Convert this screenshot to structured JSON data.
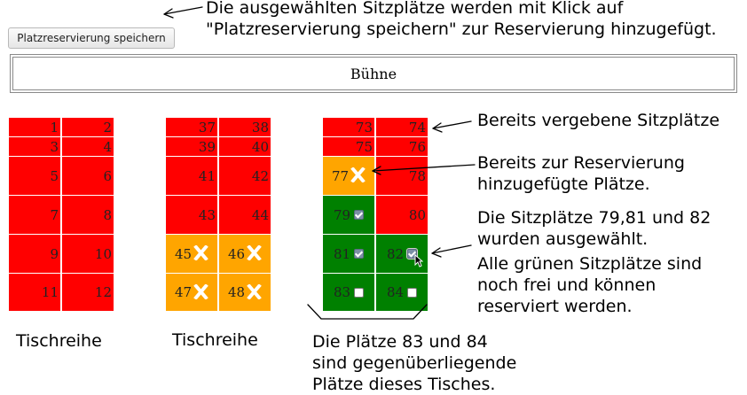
{
  "toolbar": {
    "save_label": "Platzreservierung speichern"
  },
  "stage": {
    "label": "Bühne"
  },
  "blocks": [
    {
      "seats": [
        {
          "n": "1",
          "state": "taken"
        },
        {
          "n": "2",
          "state": "taken"
        },
        {
          "n": "3",
          "state": "taken"
        },
        {
          "n": "4",
          "state": "taken"
        },
        {
          "n": "5",
          "state": "taken"
        },
        {
          "n": "6",
          "state": "taken"
        },
        {
          "n": "7",
          "state": "taken"
        },
        {
          "n": "8",
          "state": "taken"
        },
        {
          "n": "9",
          "state": "taken"
        },
        {
          "n": "10",
          "state": "taken"
        },
        {
          "n": "11",
          "state": "taken"
        },
        {
          "n": "12",
          "state": "taken"
        }
      ],
      "label": "Tischreihe"
    },
    {
      "seats": [
        {
          "n": "37",
          "state": "taken"
        },
        {
          "n": "38",
          "state": "taken"
        },
        {
          "n": "39",
          "state": "taken"
        },
        {
          "n": "40",
          "state": "taken"
        },
        {
          "n": "41",
          "state": "taken"
        },
        {
          "n": "42",
          "state": "taken"
        },
        {
          "n": "43",
          "state": "taken"
        },
        {
          "n": "44",
          "state": "taken"
        },
        {
          "n": "45",
          "state": "added"
        },
        {
          "n": "46",
          "state": "added"
        },
        {
          "n": "47",
          "state": "added"
        },
        {
          "n": "48",
          "state": "added"
        }
      ],
      "label": "Tischreihe"
    },
    {
      "seats": [
        {
          "n": "73",
          "state": "taken"
        },
        {
          "n": "74",
          "state": "taken"
        },
        {
          "n": "75",
          "state": "taken"
        },
        {
          "n": "76",
          "state": "taken"
        },
        {
          "n": "77",
          "state": "added"
        },
        {
          "n": "78",
          "state": "taken"
        },
        {
          "n": "79",
          "state": "selected"
        },
        {
          "n": "80",
          "state": "taken"
        },
        {
          "n": "81",
          "state": "selected"
        },
        {
          "n": "82",
          "state": "selected"
        },
        {
          "n": "83",
          "state": "free"
        },
        {
          "n": "84",
          "state": "free"
        }
      ],
      "label": ""
    }
  ],
  "notes": {
    "save_line1": "Die ausgewählten Sitzplätze werden mit Klick auf",
    "save_line2": "\"Platzreservierung speichern\" zur Reservierung hinzugefügt.",
    "taken": "Bereits vergebene Sitzplätze",
    "added_line1": "Bereits zur Reservierung",
    "added_line2": "hinzugefügte Plätze.",
    "selected_line1": "Die Sitzplätze 79,81 und 82",
    "selected_line2": "wurden ausgewählt.",
    "selected_line3": "Alle grünen Sitzplätze sind",
    "selected_line4": "noch frei und können",
    "selected_line5": "reserviert werden.",
    "opposite_line1": "Die Plätze 83 und 84",
    "opposite_line2": "sind gegenüberliegende",
    "opposite_line3": "Plätze dieses Tisches."
  },
  "colors": {
    "taken": "#ff0000",
    "added": "#ffa500",
    "free": "#008000"
  },
  "icons": {
    "added": "x-mark-icon",
    "selected": "checked-checkbox-icon",
    "free": "empty-checkbox-icon",
    "cursor": "mouse-pointer-icon"
  }
}
